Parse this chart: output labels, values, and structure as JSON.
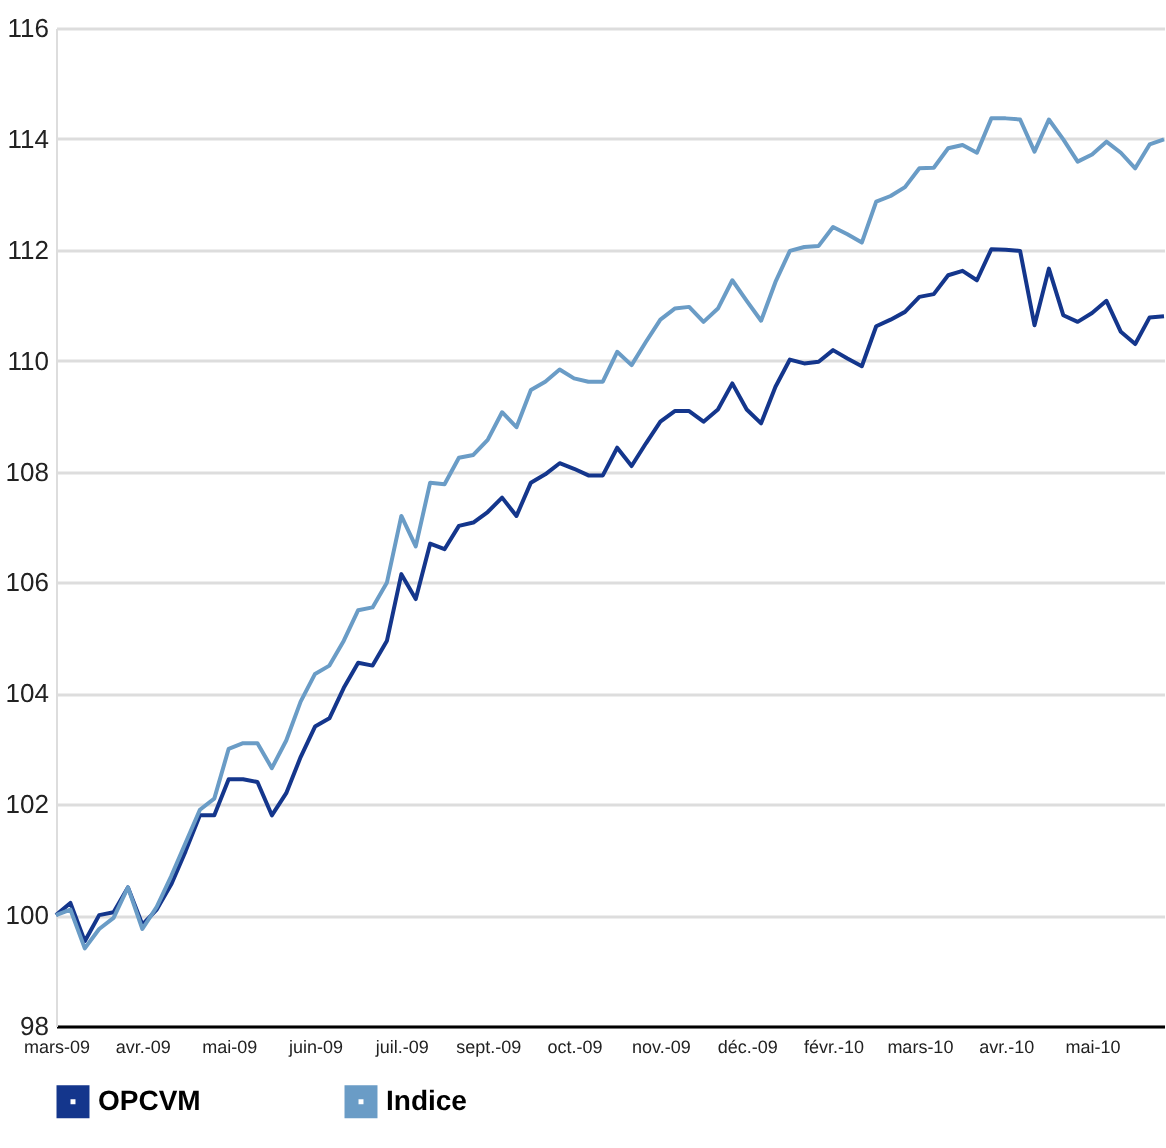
{
  "chart_data": {
    "type": "line",
    "categories": [
      "mars-09",
      null,
      null,
      null,
      null,
      null,
      "avr.-09",
      null,
      null,
      null,
      null,
      null,
      "mai-09",
      null,
      null,
      null,
      null,
      null,
      "juin-09",
      null,
      null,
      null,
      null,
      null,
      "juil.-09",
      null,
      null,
      null,
      null,
      null,
      "sept.-09",
      null,
      null,
      null,
      null,
      null,
      "oct.-09",
      null,
      null,
      null,
      null,
      null,
      "nov.-09",
      null,
      null,
      null,
      null,
      null,
      "déc.-09",
      null,
      null,
      null,
      null,
      null,
      "févr.-10",
      null,
      null,
      null,
      null,
      null,
      "mars-10",
      null,
      null,
      null,
      null,
      null,
      "avr.-10",
      null,
      null,
      null,
      null,
      null,
      "mai-10",
      null,
      null,
      null,
      null,
      null
    ],
    "series": [
      {
        "name": "OPCVM",
        "color": "#14368c",
        "values": [
          100.0,
          100.22,
          99.53,
          100.0,
          100.05,
          100.5,
          99.83,
          100.1,
          100.55,
          101.15,
          101.8,
          101.8,
          102.45,
          102.45,
          102.4,
          101.8,
          102.2,
          102.85,
          103.4,
          103.55,
          104.1,
          104.55,
          104.5,
          104.95,
          106.15,
          105.7,
          106.7,
          106.6,
          107.02,
          107.08,
          107.27,
          107.53,
          107.2,
          107.8,
          107.95,
          108.15,
          108.05,
          107.93,
          107.93,
          108.43,
          108.1,
          108.51,
          108.9,
          109.09,
          109.09,
          108.9,
          109.12,
          109.59,
          109.12,
          108.87,
          109.53,
          110.02,
          109.95,
          109.98,
          110.19,
          110.04,
          109.9,
          110.62,
          110.74,
          110.88,
          111.15,
          111.2,
          111.54,
          111.62,
          111.45,
          112.01,
          112.0,
          111.98,
          110.64,
          111.66,
          110.82,
          110.7,
          110.86,
          111.08,
          110.52,
          110.3,
          110.78,
          110.8
        ]
      },
      {
        "name": "Indice",
        "color": "#6a9cc6",
        "values": [
          100.0,
          100.1,
          99.4,
          99.75,
          99.95,
          100.5,
          99.75,
          100.15,
          100.7,
          101.3,
          101.9,
          102.1,
          103.0,
          103.1,
          103.1,
          102.65,
          103.15,
          103.85,
          104.35,
          104.5,
          104.95,
          105.5,
          105.55,
          106.0,
          107.2,
          106.65,
          107.8,
          107.77,
          108.25,
          108.3,
          108.57,
          109.07,
          108.8,
          109.47,
          109.62,
          109.84,
          109.68,
          109.62,
          109.62,
          110.16,
          109.92,
          110.34,
          110.74,
          110.94,
          110.97,
          110.7,
          110.94,
          111.45,
          111.08,
          110.72,
          111.42,
          111.98,
          112.05,
          112.07,
          112.41,
          112.28,
          112.13,
          112.87,
          112.97,
          113.13,
          113.47,
          113.48,
          113.83,
          113.89,
          113.75,
          114.37,
          114.37,
          114.35,
          113.77,
          114.35,
          113.99,
          113.59,
          113.72,
          113.95,
          113.75,
          113.47,
          113.9,
          113.99
        ]
      }
    ],
    "ylim": [
      98,
      116
    ],
    "yticks": [
      98,
      100,
      102,
      104,
      106,
      108,
      110,
      112,
      114,
      116
    ],
    "grid": "y",
    "legend": "bottom",
    "marker": "none",
    "line_style": "solid"
  }
}
